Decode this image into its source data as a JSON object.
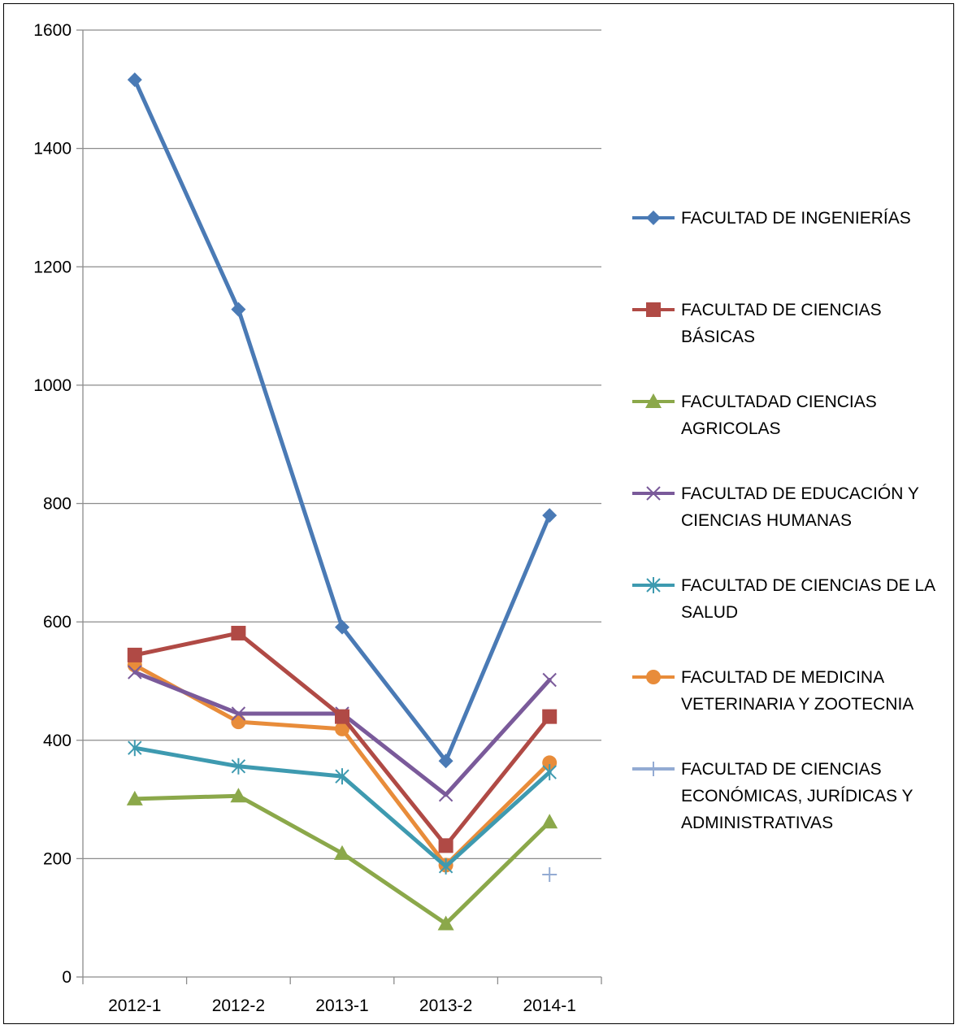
{
  "chart_data": {
    "type": "line",
    "title": "",
    "xlabel": "",
    "ylabel": "",
    "categories": [
      "2012-1",
      "2012-2",
      "2013-1",
      "2013-2",
      "2014-1"
    ],
    "ylim": [
      0,
      1600
    ],
    "yticks": [
      0,
      200,
      400,
      600,
      800,
      1000,
      1200,
      1400,
      1600
    ],
    "grid": true,
    "legend_position": "right",
    "series": [
      {
        "name": "FACULTAD DE INGENIERÍAS",
        "legend_lines": [
          "FACULTAD DE INGENIERÍAS"
        ],
        "values": [
          1516,
          1128,
          591,
          365,
          780
        ],
        "color": "#4a7ab5",
        "marker": "diamond"
      },
      {
        "name": "FACULTAD DE CIENCIAS BÁSICAS",
        "legend_lines": [
          "FACULTAD DE CIENCIAS",
          "BÁSICAS"
        ],
        "values": [
          544,
          581,
          440,
          222,
          440
        ],
        "color": "#b04a45",
        "marker": "square"
      },
      {
        "name": "FACULTADAD CIENCIAS AGRICOLAS",
        "legend_lines": [
          "FACULTADAD CIENCIAS",
          "AGRICOLAS"
        ],
        "values": [
          301,
          306,
          209,
          90,
          262
        ],
        "color": "#8ba84a",
        "marker": "triangle"
      },
      {
        "name": "FACULTAD DE EDUCACIÓN Y CIENCIAS HUMANAS",
        "legend_lines": [
          "FACULTAD DE EDUCACIÓN Y",
          "CIENCIAS HUMANAS"
        ],
        "values": [
          515,
          445,
          445,
          308,
          502
        ],
        "color": "#7a5a9a",
        "marker": "x"
      },
      {
        "name": "FACULTAD DE CIENCIAS DE LA SALUD",
        "legend_lines": [
          "FACULTAD DE CIENCIAS DE LA",
          "SALUD"
        ],
        "values": [
          387,
          356,
          339,
          187,
          346
        ],
        "color": "#3e9ab0",
        "marker": "asterisk"
      },
      {
        "name": "FACULTAD DE MEDICINA VETERINARIA Y ZOOTECNIA",
        "legend_lines": [
          "FACULTAD DE MEDICINA",
          "VETERINARIA Y ZOOTECNIA"
        ],
        "values": [
          527,
          431,
          419,
          189,
          362
        ],
        "color": "#e88c3a",
        "marker": "circle"
      },
      {
        "name": "FACULTAD DE CIENCIAS ECONÓMICAS, JURÍDICAS Y ADMINISTRATIVAS",
        "legend_lines": [
          "FACULTAD DE CIENCIAS",
          "ECONÓMICAS, JURÍDICAS Y",
          "ADMINISTRATIVAS"
        ],
        "values": [
          null,
          null,
          null,
          null,
          173
        ],
        "color": "#93abd3",
        "marker": "plus"
      }
    ]
  }
}
